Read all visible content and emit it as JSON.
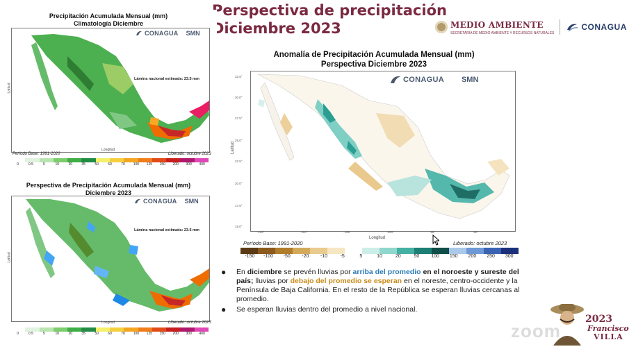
{
  "header": {
    "title_line1": "Perspectiva de precipitación",
    "title_line2": "Diciembre 2023"
  },
  "logos": {
    "medio_ambiente": "MEDIO AMBIENTE",
    "medio_ambiente_sub": "SECRETARÍA DE MEDIO AMBIENTE Y RECURSOS NATURALES",
    "conagua": "CONAGUA",
    "map_conagua": "CONAGUA",
    "map_smn": "SMN"
  },
  "map_clim": {
    "title_line1": "Precipitación Acumulada Mensual (mm)",
    "title_line2": "Climatología Diciembre",
    "lamina": "Lámina nacional estimada: 23.5 mm",
    "periodo": "Período Base: 1991-2020",
    "liberado": "Liberado: octubre 2023",
    "ylabel": "Latitud",
    "xlabel": "Longitud",
    "colorbar": [
      "0",
      "0.5",
      "5",
      "10",
      "20",
      "35",
      "50",
      "60",
      "70",
      "100",
      "125",
      "150",
      "200",
      "300",
      "400"
    ]
  },
  "map_persp": {
    "title_line1": "Perspectiva de Precipitación Acumulada Mensual (mm)",
    "title_line2": "Diciembre 2023",
    "lamina": "Lámina nacional estimada: 23.5 mm",
    "liberado": "Liberado: octubre 2023",
    "ylabel": "Latitud",
    "xlabel": "Longitud",
    "colorbar": [
      "0",
      "0.5",
      "5",
      "10",
      "20",
      "35",
      "50",
      "60",
      "70",
      "100",
      "125",
      "150",
      "200",
      "300",
      "400"
    ]
  },
  "map_anom": {
    "title_line1": "Anomalía de Precipitación Acumulada Mensual (mm)",
    "title_line2": "Perspectiva Diciembre 2023",
    "periodo": "Período Base: 1991-2020",
    "liberado": "Liberado: octubre 2023",
    "ylabel": "Latitud",
    "xlabel": "Longitud",
    "y_ticks": [
      "32.5°",
      "30.0°",
      "27.5°",
      "25.0°",
      "22.5°",
      "20.0°",
      "17.5°",
      "15.0°"
    ],
    "x_ticks": [
      "-115°",
      "-110°",
      "-105°",
      "-100°",
      "-95°",
      "-90°"
    ],
    "colorbar": [
      "-150",
      "-100",
      "-50",
      "-20",
      "-10",
      "-5",
      "5",
      "10",
      "20",
      "50",
      "100",
      "150",
      "200",
      "250",
      "300"
    ]
  },
  "bullets": {
    "b1_a": "En ",
    "b1_b": "diciembre",
    "b1_c": " se prevén lluvias por ",
    "b1_d": "arriba del promedio",
    "b1_e": " en el noroeste y sureste del país;",
    "b1_f": " lluvias por ",
    "b1_g": "debajo del promedio se esperan",
    "b1_h": " en el noreste, centro-occidente y la Península de Baja California. En el resto de la República se esperan lluvias cercanas al promedio.",
    "b2": "Se esperan lluvias dentro del promedio a nivel nacional."
  },
  "watermark": {
    "zoom": "zoom",
    "year": "2023",
    "name1": "Francisco",
    "name2": "VILLA"
  },
  "colors": {
    "title": "#7a2a41",
    "blue_highlight": "#2b7bb5",
    "gold_highlight": "#c98b18"
  }
}
